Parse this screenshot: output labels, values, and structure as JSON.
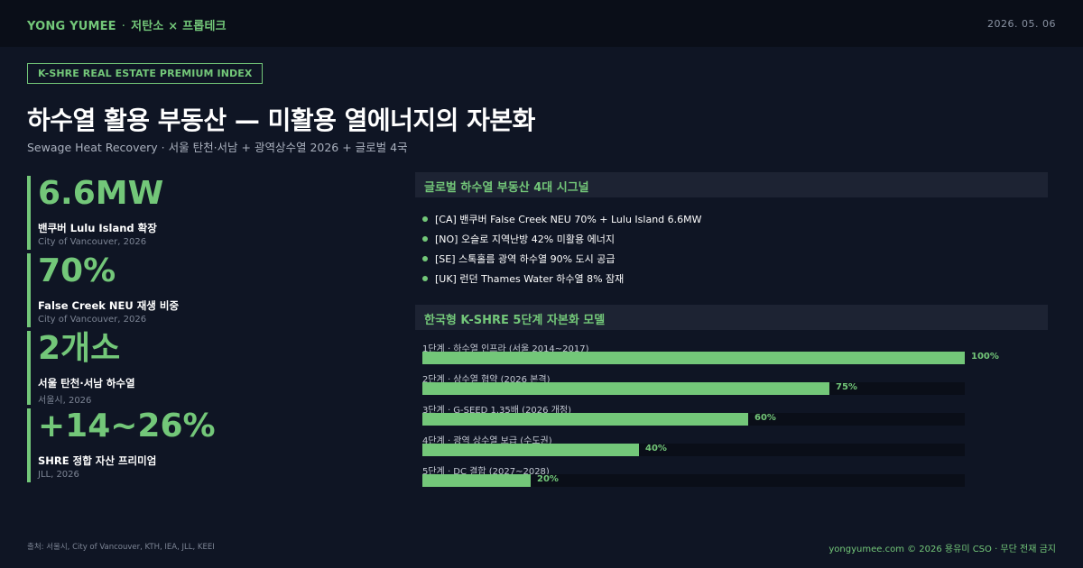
{
  "header": {
    "brand": "YONG YUMEE",
    "separator": "·",
    "brand_sub": "저탄소 × 프롭테크",
    "date": "2026. 05. 06"
  },
  "tag": "K-SHRE REAL ESTATE PREMIUM INDEX",
  "title": "하수열 활용 부동산 — 미활용 열에너지의 자본화",
  "subtitle": "Sewage Heat Recovery · 서울 탄천·서남 + 광역상수열 2026 + 글로벌 4국",
  "stats": [
    {
      "value": "6.6MW",
      "label": "밴쿠버 Lulu Island 확장",
      "source": "City of Vancouver, 2026"
    },
    {
      "value": "70%",
      "label": "False Creek NEU 재생 비중",
      "source": "City of Vancouver, 2026"
    },
    {
      "value": "2개소",
      "label": "서울 탄천·서남 하수열",
      "source": "서울시, 2026"
    },
    {
      "value": "+14~26%",
      "label": "SHRE 정합 자산 프리미엄",
      "source": "JLL, 2026"
    }
  ],
  "signals_panel": {
    "title": "글로벌 하수열 부동산 4대 시그널",
    "items": [
      "[CA]  밴쿠버 False Creek NEU 70% + Lulu Island 6.6MW",
      "[NO]  오슬로 지역난방 42% 미활용 에너지",
      "[SE]  스톡홀름 광역 하수열 90% 도시 공급",
      "[UK]  런던 Thames Water 하수열 8% 잠재"
    ]
  },
  "model_panel": {
    "title": "한국형 K-SHRE 5단계 자본화 모델",
    "stages": [
      {
        "label": "1단계 · 하수열 인프라 (서울 2014~2017)",
        "value": 100,
        "pct": "100%"
      },
      {
        "label": "2단계 · 상수열 협약 (2026 본격)",
        "value": 75,
        "pct": "75%"
      },
      {
        "label": "3단계 · G-SEED 1.35배 (2026 개정)",
        "value": 60,
        "pct": "60%"
      },
      {
        "label": "4단계 · 광역 상수열 보급 (수도권)",
        "value": 40,
        "pct": "40%"
      },
      {
        "label": "5단계 · DC 결합 (2027~2028)",
        "value": 20,
        "pct": "20%"
      }
    ]
  },
  "footer": {
    "sources": "출처: 서울시, City of Vancouver, KTH, IEA, JLL, KEEI",
    "right": "yongyumee.com  ©  2026 용유미 CSO  ·  무단 전재 금지"
  },
  "colors": {
    "accent": "#73c779",
    "background": "#0f1524",
    "topbar": "#0a0e18",
    "panel_header": "#1d2333"
  }
}
